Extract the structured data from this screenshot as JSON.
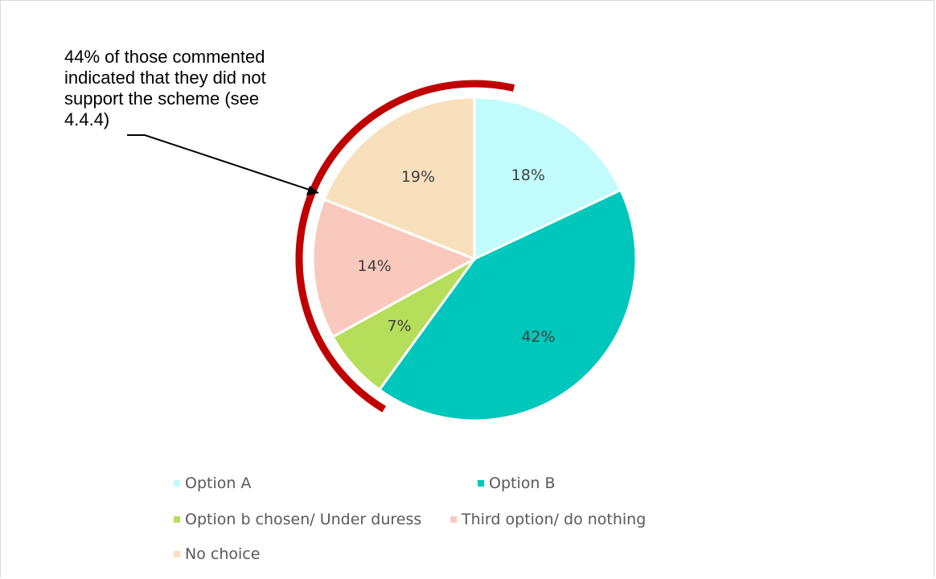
{
  "chart_data": {
    "type": "pie",
    "title": "",
    "categories": [
      "Option A",
      "Option B",
      "Option b chosen/ Under duress",
      "Third option/ do nothing",
      "No choice"
    ],
    "values": [
      18,
      42,
      7,
      14,
      19
    ],
    "labels": [
      "18%",
      "42%",
      "7%",
      "14%",
      "19%"
    ],
    "colors": [
      "#c2fbfb",
      "#00c7bb",
      "#b6de5a",
      "#f9c9bd",
      "#f9e0bc"
    ],
    "legend_position": "bottom",
    "annotation": {
      "lines": [
        "44% of those commented",
        "indicated that they did not",
        "support the scheme (see",
        "4.4.4)"
      ],
      "highlight_color": "#c00000"
    }
  }
}
